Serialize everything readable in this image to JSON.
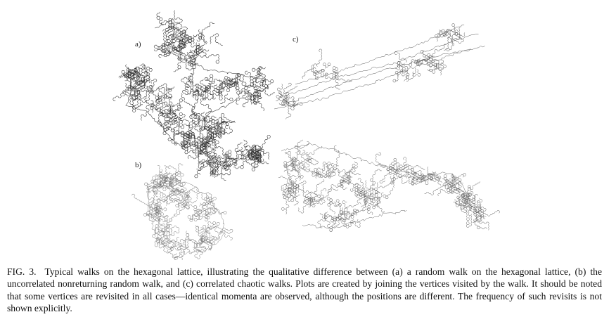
{
  "figure": {
    "panels": [
      {
        "id": "a",
        "label": "a)"
      },
      {
        "id": "b",
        "label": "b)"
      },
      {
        "id": "c",
        "label": "c)"
      }
    ]
  },
  "caption": {
    "label": "FIG. 3.",
    "text": "Typical walks on the hexagonal lattice, illustrating the qualitative difference between (a) a random walk on the hexagonal lattice, (b) the uncorrelated nonreturning random walk, and (c) correlated chaotic walks. Plots are created by joining the vertices visited by the walk. It should be noted that some vertices are revisited in all cases—identical momenta are observed, although the positions are different. The frequency of such revisits is not shown explicitly."
  }
}
